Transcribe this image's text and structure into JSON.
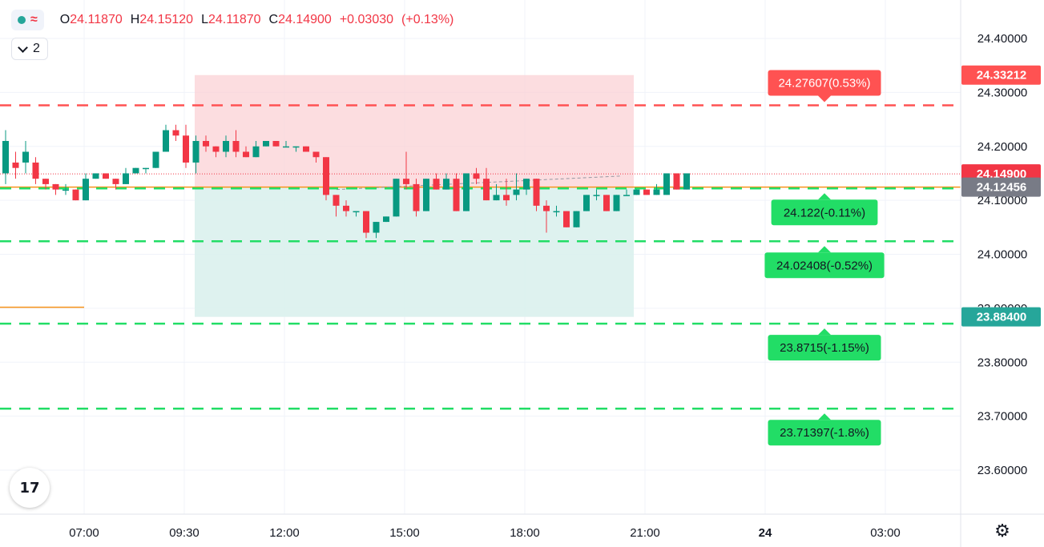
{
  "legend": {
    "open_prefix": "O",
    "open": "24.11870",
    "high_prefix": "H",
    "high": "24.15120",
    "low_prefix": "L",
    "low": "24.11870",
    "close_prefix": "C",
    "close": "24.14900",
    "change": "+0.03030",
    "change_pct": "(+0.13%)",
    "indicator_count": "2",
    "wave_symbol": "≈"
  },
  "logo_text": "17",
  "settings_icon": "gear-icon",
  "colors": {
    "up": "#089981",
    "down": "#f23645",
    "grid": "#f0f3fa",
    "target_fill": "#fbd2d6",
    "stop_fill": "#d8f0ec",
    "bullish_line": "#22dd66",
    "bearish_line": "#ff5252",
    "price_line": "#f7931a"
  },
  "price_axis": {
    "ticks": [
      "24.40000",
      "24.30000",
      "24.20000",
      "24.10000",
      "24.00000",
      "23.90000",
      "23.80000",
      "23.70000",
      "23.60000"
    ],
    "tags": [
      {
        "text": "24.33212",
        "price": 24.33212,
        "color": "#ff5252"
      },
      {
        "text": "24.14900",
        "price": 24.149,
        "color": "#f23645"
      },
      {
        "text": "24.12456",
        "price": 24.12456,
        "color": "#787b86"
      },
      {
        "text": "23.88400",
        "price": 23.884,
        "color": "#26a69a"
      }
    ]
  },
  "time_axis": [
    "07:00",
    "09:30",
    "12:00",
    "15:00",
    "18:00",
    "21:00",
    "24",
    "03:00"
  ],
  "levels": [
    {
      "price": 24.27607,
      "label": "24.27607(0.53%)",
      "color": "#ff5252",
      "side": "above"
    },
    {
      "price": 24.122,
      "label": "24.122(-0.11%)",
      "color": "#22dd66",
      "side": "below"
    },
    {
      "price": 24.02408,
      "label": "24.02408(-0.52%)",
      "color": "#22dd66",
      "side": "below"
    },
    {
      "price": 23.8715,
      "label": "23.8715(-1.15%)",
      "color": "#22dd66",
      "side": "below"
    },
    {
      "price": 23.71397,
      "label": "23.71397(-1.8%)",
      "color": "#22dd66",
      "side": "below"
    }
  ],
  "chart_data": {
    "type": "candlestick",
    "ylim": [
      23.52,
      24.45
    ],
    "grid": true,
    "position_tool": {
      "entry": 24.12456,
      "target": 24.33212,
      "stop": 23.884
    },
    "candles": [
      {
        "o": 24.15,
        "h": 24.23,
        "l": 24.13,
        "c": 24.21
      },
      {
        "o": 24.17,
        "h": 24.19,
        "l": 24.14,
        "c": 24.16
      },
      {
        "o": 24.17,
        "h": 24.21,
        "l": 24.15,
        "c": 24.19
      },
      {
        "o": 24.17,
        "h": 24.18,
        "l": 24.13,
        "c": 24.14
      },
      {
        "o": 24.14,
        "h": 24.14,
        "l": 24.12,
        "c": 24.13
      },
      {
        "o": 24.13,
        "h": 24.13,
        "l": 24.11,
        "c": 24.12
      },
      {
        "o": 24.12,
        "h": 24.13,
        "l": 24.11,
        "c": 24.12
      },
      {
        "o": 24.12,
        "h": 24.12,
        "l": 24.1,
        "c": 24.1
      },
      {
        "o": 24.1,
        "h": 24.15,
        "l": 24.1,
        "c": 24.14
      },
      {
        "o": 24.14,
        "h": 24.15,
        "l": 24.14,
        "c": 24.15
      },
      {
        "o": 24.15,
        "h": 24.15,
        "l": 24.14,
        "c": 24.14
      },
      {
        "o": 24.14,
        "h": 24.14,
        "l": 24.12,
        "c": 24.13
      },
      {
        "o": 24.13,
        "h": 24.16,
        "l": 24.13,
        "c": 24.15
      },
      {
        "o": 24.15,
        "h": 24.16,
        "l": 24.15,
        "c": 24.16
      },
      {
        "o": 24.16,
        "h": 24.16,
        "l": 24.15,
        "c": 24.16
      },
      {
        "o": 24.16,
        "h": 24.19,
        "l": 24.16,
        "c": 24.19
      },
      {
        "o": 24.19,
        "h": 24.24,
        "l": 24.19,
        "c": 24.23
      },
      {
        "o": 24.23,
        "h": 24.24,
        "l": 24.21,
        "c": 24.22
      },
      {
        "o": 24.22,
        "h": 24.24,
        "l": 24.16,
        "c": 24.17
      },
      {
        "o": 24.17,
        "h": 24.22,
        "l": 24.15,
        "c": 24.21
      },
      {
        "o": 24.21,
        "h": 24.22,
        "l": 24.19,
        "c": 24.2
      },
      {
        "o": 24.2,
        "h": 24.2,
        "l": 24.18,
        "c": 24.19
      },
      {
        "o": 24.19,
        "h": 24.22,
        "l": 24.18,
        "c": 24.21
      },
      {
        "o": 24.21,
        "h": 24.23,
        "l": 24.18,
        "c": 24.19
      },
      {
        "o": 24.19,
        "h": 24.2,
        "l": 24.18,
        "c": 24.18
      },
      {
        "o": 24.18,
        "h": 24.21,
        "l": 24.18,
        "c": 24.2
      },
      {
        "o": 24.2,
        "h": 24.21,
        "l": 24.2,
        "c": 24.21
      },
      {
        "o": 24.21,
        "h": 24.21,
        "l": 24.2,
        "c": 24.2
      },
      {
        "o": 24.2,
        "h": 24.21,
        "l": 24.2,
        "c": 24.2
      },
      {
        "o": 24.2,
        "h": 24.2,
        "l": 24.19,
        "c": 24.2
      },
      {
        "o": 24.2,
        "h": 24.2,
        "l": 24.19,
        "c": 24.19
      },
      {
        "o": 24.19,
        "h": 24.19,
        "l": 24.17,
        "c": 24.18
      },
      {
        "o": 24.18,
        "h": 24.18,
        "l": 24.1,
        "c": 24.11
      },
      {
        "o": 24.11,
        "h": 24.11,
        "l": 24.07,
        "c": 24.09
      },
      {
        "o": 24.09,
        "h": 24.1,
        "l": 24.07,
        "c": 24.08
      },
      {
        "o": 24.08,
        "h": 24.08,
        "l": 24.07,
        "c": 24.08
      },
      {
        "o": 24.08,
        "h": 24.08,
        "l": 24.03,
        "c": 24.04
      },
      {
        "o": 24.04,
        "h": 24.06,
        "l": 24.03,
        "c": 24.06
      },
      {
        "o": 24.06,
        "h": 24.07,
        "l": 24.06,
        "c": 24.07
      },
      {
        "o": 24.07,
        "h": 24.14,
        "l": 24.07,
        "c": 24.14
      },
      {
        "o": 24.14,
        "h": 24.19,
        "l": 24.12,
        "c": 24.13
      },
      {
        "o": 24.13,
        "h": 24.14,
        "l": 24.07,
        "c": 24.08
      },
      {
        "o": 24.08,
        "h": 24.14,
        "l": 24.08,
        "c": 24.14
      },
      {
        "o": 24.14,
        "h": 24.15,
        "l": 24.12,
        "c": 24.12
      },
      {
        "o": 24.12,
        "h": 24.15,
        "l": 24.12,
        "c": 24.14
      },
      {
        "o": 24.14,
        "h": 24.15,
        "l": 24.08,
        "c": 24.08
      },
      {
        "o": 24.08,
        "h": 24.15,
        "l": 24.08,
        "c": 24.15
      },
      {
        "o": 24.15,
        "h": 24.16,
        "l": 24.13,
        "c": 24.14
      },
      {
        "o": 24.14,
        "h": 24.16,
        "l": 24.1,
        "c": 24.1
      },
      {
        "o": 24.1,
        "h": 24.13,
        "l": 24.1,
        "c": 24.11
      },
      {
        "o": 24.11,
        "h": 24.14,
        "l": 24.09,
        "c": 24.1
      },
      {
        "o": 24.11,
        "h": 24.15,
        "l": 24.1,
        "c": 24.12
      },
      {
        "o": 24.12,
        "h": 24.14,
        "l": 24.11,
        "c": 24.14
      },
      {
        "o": 24.14,
        "h": 24.14,
        "l": 24.08,
        "c": 24.09
      },
      {
        "o": 24.09,
        "h": 24.1,
        "l": 24.04,
        "c": 24.08
      },
      {
        "o": 24.08,
        "h": 24.09,
        "l": 24.07,
        "c": 24.08
      },
      {
        "o": 24.08,
        "h": 24.08,
        "l": 24.05,
        "c": 24.05
      },
      {
        "o": 24.05,
        "h": 24.08,
        "l": 24.05,
        "c": 24.08
      },
      {
        "o": 24.08,
        "h": 24.11,
        "l": 24.08,
        "c": 24.11
      },
      {
        "o": 24.11,
        "h": 24.12,
        "l": 24.1,
        "c": 24.11
      },
      {
        "o": 24.11,
        "h": 24.11,
        "l": 24.08,
        "c": 24.08
      },
      {
        "o": 24.08,
        "h": 24.11,
        "l": 24.08,
        "c": 24.11
      },
      {
        "o": 24.11,
        "h": 24.12,
        "l": 24.11,
        "c": 24.11
      },
      {
        "o": 24.11,
        "h": 24.12,
        "l": 24.11,
        "c": 24.12
      },
      {
        "o": 24.12,
        "h": 24.12,
        "l": 24.11,
        "c": 24.11
      },
      {
        "o": 24.11,
        "h": 24.13,
        "l": 24.11,
        "c": 24.12
      },
      {
        "o": 24.11,
        "h": 24.15,
        "l": 24.11,
        "c": 24.15
      },
      {
        "o": 24.15,
        "h": 24.15,
        "l": 24.12,
        "c": 24.12
      },
      {
        "o": 24.12,
        "h": 24.15,
        "l": 24.12,
        "c": 24.15
      }
    ]
  }
}
